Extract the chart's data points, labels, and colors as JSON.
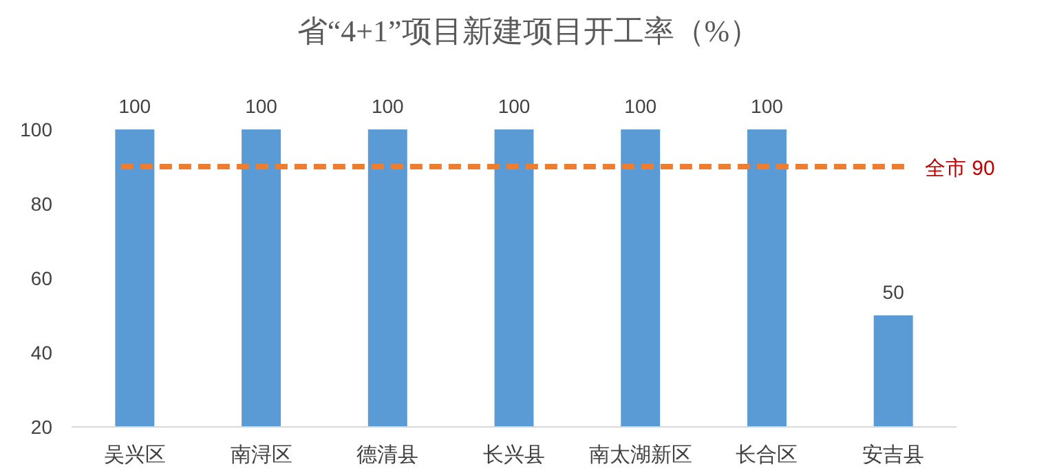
{
  "chart_data": {
    "type": "bar",
    "title": "省“4+1”项目新建项目开工率（%）",
    "categories": [
      "吴兴区",
      "南浔区",
      "德清县",
      "长兴县",
      "南太湖新区",
      "长合区",
      "安吉县"
    ],
    "values": [
      100,
      100,
      100,
      100,
      100,
      100,
      50
    ],
    "color": "#5b9bd5",
    "ylim": [
      20,
      100
    ],
    "yticks": [
      20,
      40,
      60,
      80,
      100
    ],
    "grid": false,
    "data_labels": true,
    "ref_lines": [
      {
        "axis": "y",
        "value": 90,
        "label": "全市 90",
        "color": "#ed7d31",
        "line_style": "dashed"
      }
    ]
  }
}
